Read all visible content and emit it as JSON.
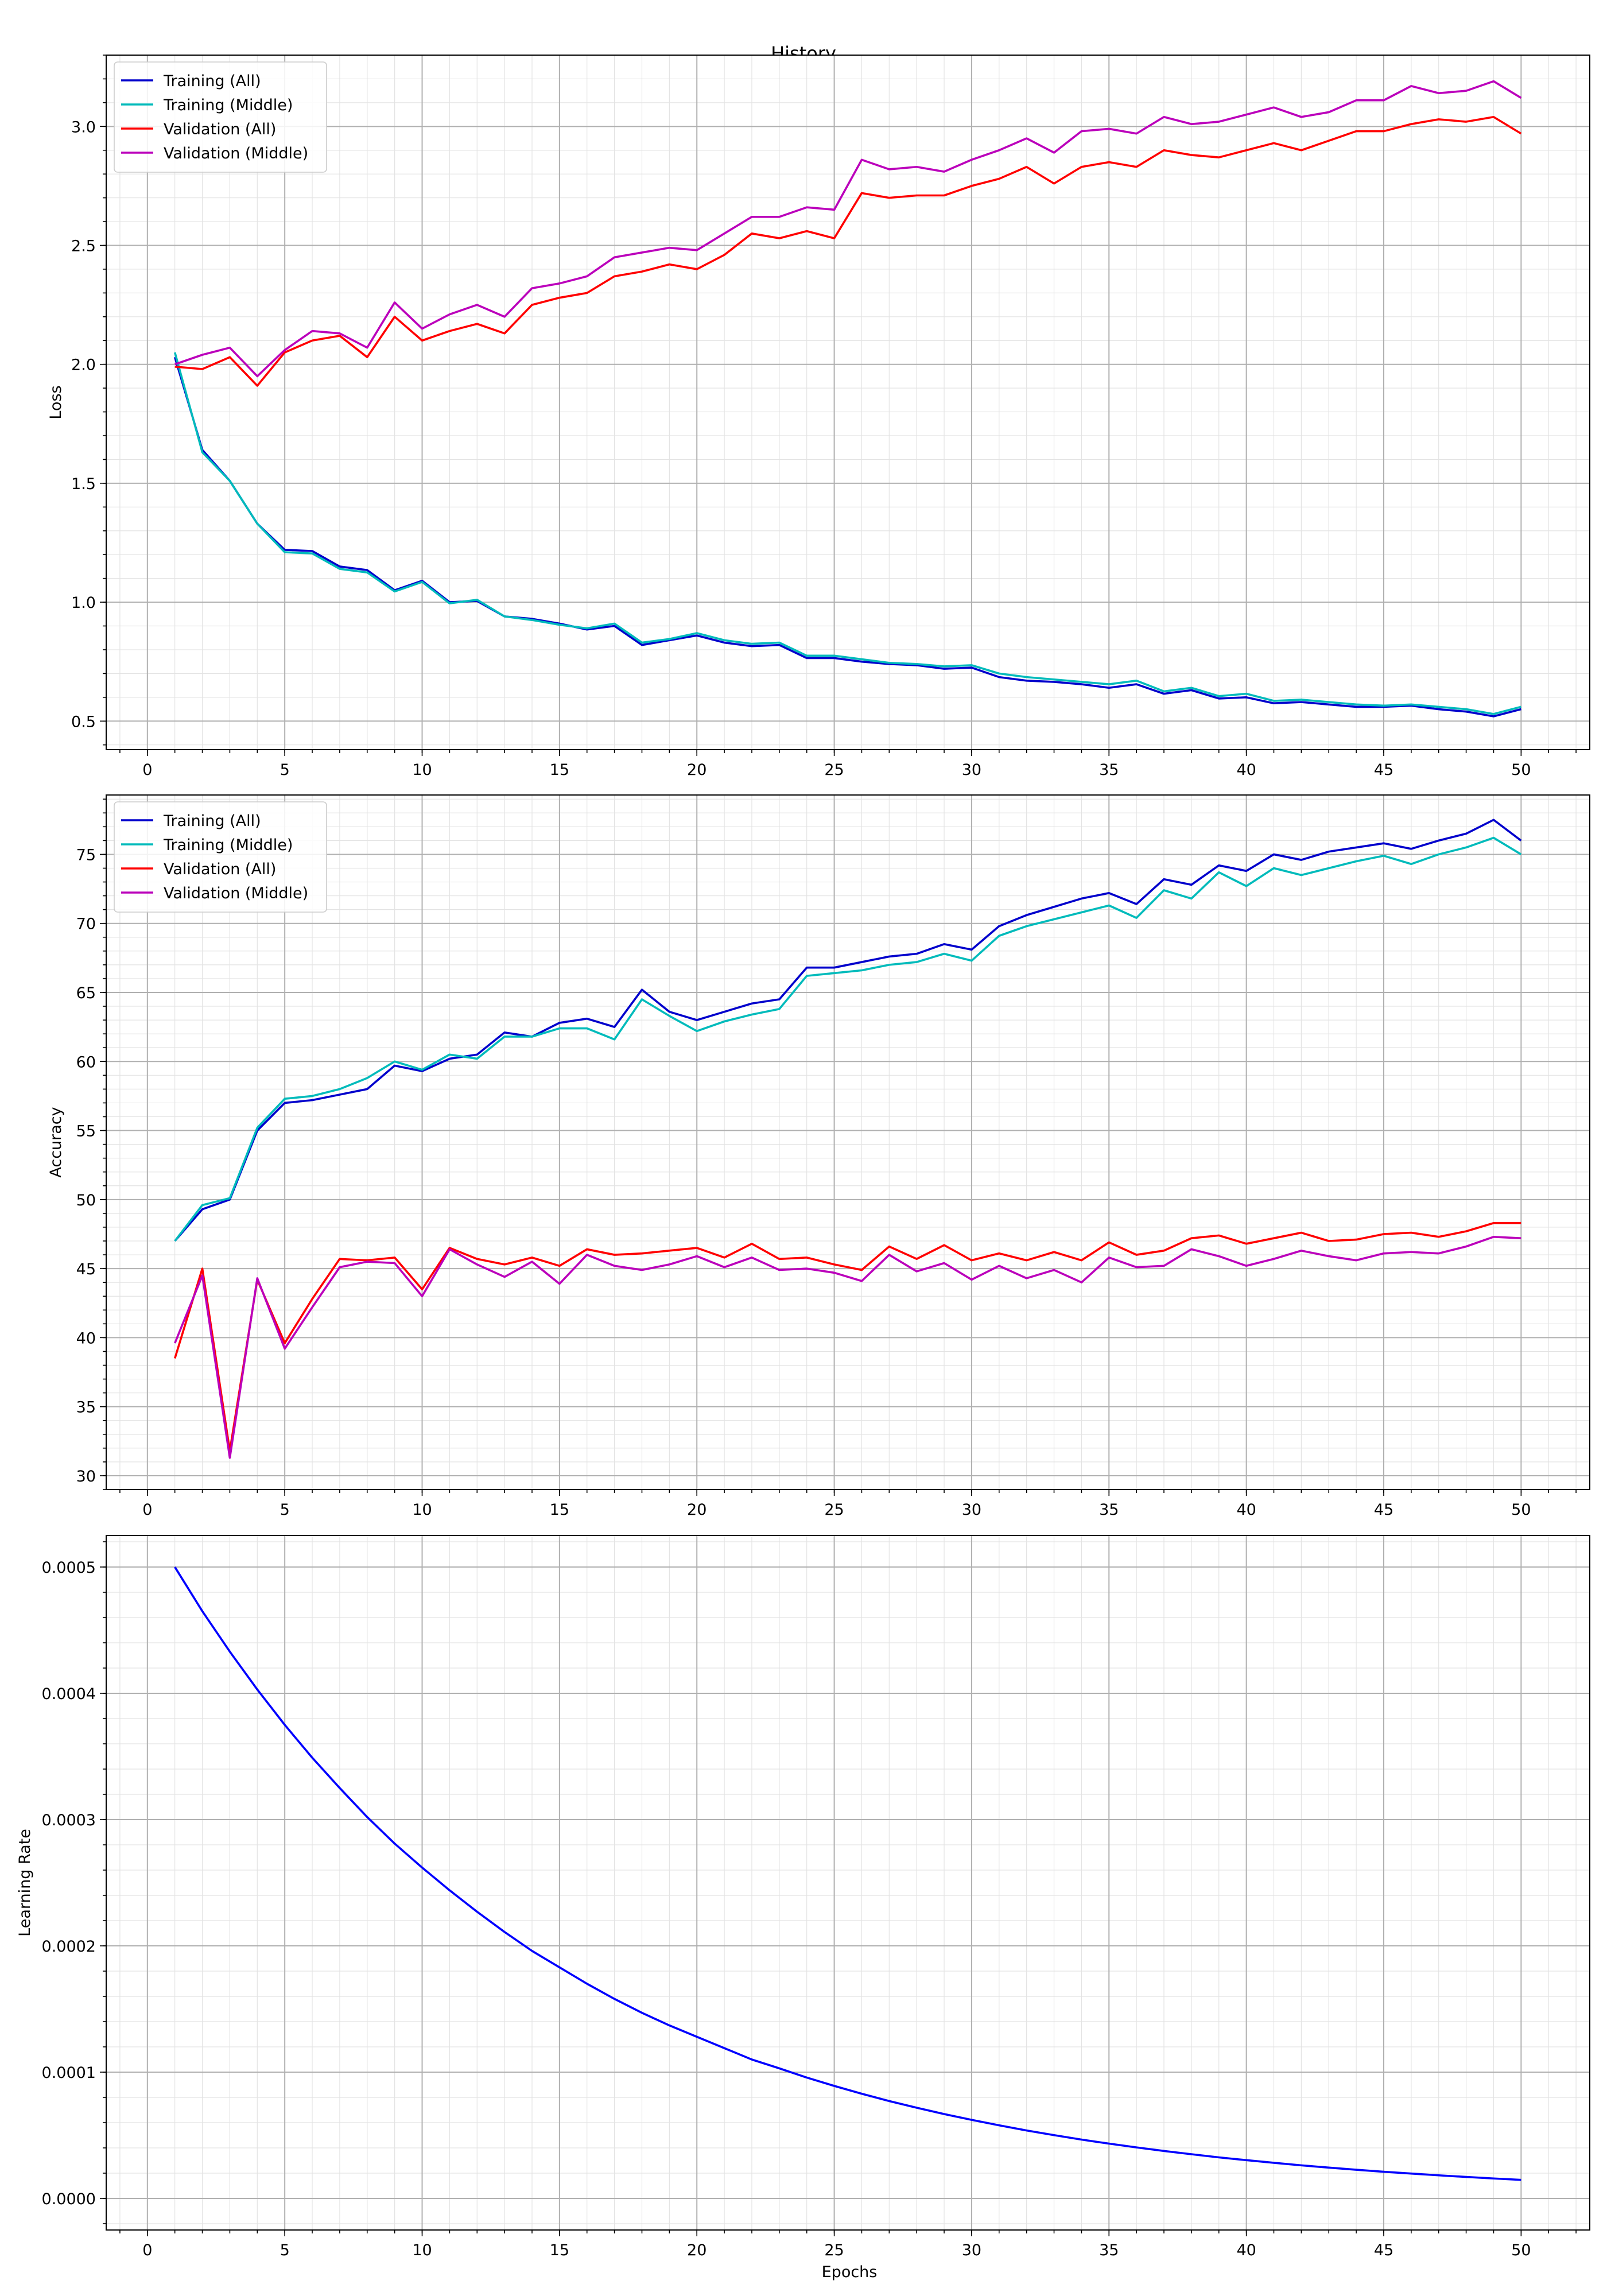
{
  "figure": {
    "title": "History"
  },
  "chart_data": [
    {
      "type": "line",
      "title": "",
      "xlabel": "",
      "ylabel": "Loss",
      "xlim": [
        -1.5,
        52.5
      ],
      "ylim": [
        0.38,
        3.3
      ],
      "xticks": [
        0,
        5,
        10,
        15,
        20,
        25,
        30,
        35,
        40,
        45,
        50
      ],
      "yticks": [
        0.5,
        1.0,
        1.5,
        2.0,
        2.5,
        3.0
      ],
      "ytick_decimals": 1,
      "grid": true,
      "legend": "upper-left",
      "x": [
        1,
        2,
        3,
        4,
        5,
        6,
        7,
        8,
        9,
        10,
        11,
        12,
        13,
        14,
        15,
        16,
        17,
        18,
        19,
        20,
        21,
        22,
        23,
        24,
        25,
        26,
        27,
        28,
        29,
        30,
        31,
        32,
        33,
        34,
        35,
        36,
        37,
        38,
        39,
        40,
        41,
        42,
        43,
        44,
        45,
        46,
        47,
        48,
        49,
        50
      ],
      "series": [
        {
          "name": "Training (All)",
          "color": "#0000cc",
          "values": [
            2.03,
            1.64,
            1.51,
            1.33,
            1.22,
            1.215,
            1.15,
            1.135,
            1.05,
            1.09,
            1.0,
            1.005,
            0.94,
            0.93,
            0.91,
            0.885,
            0.9,
            0.82,
            0.84,
            0.86,
            0.83,
            0.815,
            0.82,
            0.765,
            0.765,
            0.75,
            0.74,
            0.735,
            0.72,
            0.725,
            0.685,
            0.67,
            0.665,
            0.655,
            0.64,
            0.655,
            0.615,
            0.63,
            0.595,
            0.6,
            0.575,
            0.58,
            0.57,
            0.56,
            0.56,
            0.565,
            0.55,
            0.54,
            0.52,
            0.55
          ]
        },
        {
          "name": "Training (Middle)",
          "color": "#00bbbb",
          "values": [
            2.05,
            1.63,
            1.51,
            1.33,
            1.21,
            1.205,
            1.14,
            1.125,
            1.045,
            1.085,
            0.995,
            1.01,
            0.94,
            0.925,
            0.905,
            0.89,
            0.91,
            0.83,
            0.845,
            0.87,
            0.84,
            0.825,
            0.83,
            0.775,
            0.775,
            0.76,
            0.745,
            0.74,
            0.73,
            0.735,
            0.7,
            0.685,
            0.675,
            0.665,
            0.655,
            0.67,
            0.625,
            0.64,
            0.605,
            0.615,
            0.585,
            0.59,
            0.58,
            0.57,
            0.565,
            0.57,
            0.56,
            0.55,
            0.53,
            0.56
          ]
        },
        {
          "name": "Validation (All)",
          "color": "#ff0000",
          "values": [
            1.99,
            1.98,
            2.03,
            1.91,
            2.05,
            2.1,
            2.12,
            2.03,
            2.2,
            2.1,
            2.14,
            2.17,
            2.13,
            2.25,
            2.28,
            2.3,
            2.37,
            2.39,
            2.42,
            2.4,
            2.46,
            2.55,
            2.53,
            2.56,
            2.53,
            2.72,
            2.7,
            2.71,
            2.71,
            2.75,
            2.78,
            2.83,
            2.76,
            2.83,
            2.85,
            2.83,
            2.9,
            2.88,
            2.87,
            2.9,
            2.93,
            2.9,
            2.94,
            2.98,
            2.98,
            3.01,
            3.03,
            3.02,
            3.04,
            2.97
          ]
        },
        {
          "name": "Validation (Middle)",
          "color": "#bb00bb",
          "values": [
            2.0,
            2.04,
            2.07,
            1.95,
            2.06,
            2.14,
            2.13,
            2.07,
            2.26,
            2.15,
            2.21,
            2.25,
            2.2,
            2.32,
            2.34,
            2.37,
            2.45,
            2.47,
            2.49,
            2.48,
            2.55,
            2.62,
            2.62,
            2.66,
            2.65,
            2.86,
            2.82,
            2.83,
            2.81,
            2.86,
            2.9,
            2.95,
            2.89,
            2.98,
            2.99,
            2.97,
            3.04,
            3.01,
            3.02,
            3.05,
            3.08,
            3.04,
            3.06,
            3.11,
            3.11,
            3.17,
            3.14,
            3.15,
            3.19,
            3.12
          ]
        }
      ]
    },
    {
      "type": "line",
      "title": "",
      "xlabel": "",
      "ylabel": "Accuracy",
      "xlim": [
        -1.5,
        52.5
      ],
      "ylim": [
        29.0,
        79.3
      ],
      "xticks": [
        0,
        5,
        10,
        15,
        20,
        25,
        30,
        35,
        40,
        45,
        50
      ],
      "yticks": [
        30,
        35,
        40,
        45,
        50,
        55,
        60,
        65,
        70,
        75
      ],
      "ytick_decimals": 0,
      "grid": true,
      "legend": "upper-left",
      "x": [
        1,
        2,
        3,
        4,
        5,
        6,
        7,
        8,
        9,
        10,
        11,
        12,
        13,
        14,
        15,
        16,
        17,
        18,
        19,
        20,
        21,
        22,
        23,
        24,
        25,
        26,
        27,
        28,
        29,
        30,
        31,
        32,
        33,
        34,
        35,
        36,
        37,
        38,
        39,
        40,
        41,
        42,
        43,
        44,
        45,
        46,
        47,
        48,
        49,
        50
      ],
      "series": [
        {
          "name": "Training (All)",
          "color": "#0000cc",
          "values": [
            47.0,
            49.3,
            50.0,
            55.0,
            57.0,
            57.2,
            57.6,
            58.0,
            59.7,
            59.3,
            60.2,
            60.5,
            62.1,
            61.8,
            62.8,
            63.1,
            62.5,
            65.2,
            63.6,
            63.0,
            63.6,
            64.2,
            64.5,
            66.8,
            66.8,
            67.2,
            67.6,
            67.8,
            68.5,
            68.1,
            69.8,
            70.6,
            71.2,
            71.8,
            72.2,
            71.4,
            73.2,
            72.8,
            74.2,
            73.8,
            75.0,
            74.6,
            75.2,
            75.5,
            75.8,
            75.4,
            76.0,
            76.5,
            77.5,
            76.0
          ]
        },
        {
          "name": "Training (Middle)",
          "color": "#00bbbb",
          "values": [
            47.0,
            49.6,
            50.1,
            55.2,
            57.3,
            57.5,
            58.0,
            58.8,
            60.0,
            59.4,
            60.5,
            60.2,
            61.8,
            61.8,
            62.4,
            62.4,
            61.6,
            64.5,
            63.3,
            62.2,
            62.9,
            63.4,
            63.8,
            66.2,
            66.4,
            66.6,
            67.0,
            67.2,
            67.8,
            67.3,
            69.1,
            69.8,
            70.3,
            70.8,
            71.3,
            70.4,
            72.4,
            71.8,
            73.7,
            72.7,
            74.0,
            73.5,
            74.0,
            74.5,
            74.9,
            74.3,
            75.0,
            75.5,
            76.2,
            75.0
          ]
        },
        {
          "name": "Validation (All)",
          "color": "#ff0000",
          "values": [
            38.5,
            45.0,
            31.8,
            44.2,
            39.6,
            42.8,
            45.7,
            45.6,
            45.8,
            43.5,
            46.5,
            45.7,
            45.3,
            45.8,
            45.2,
            46.4,
            46.0,
            46.1,
            46.3,
            46.5,
            45.8,
            46.8,
            45.7,
            45.8,
            45.3,
            44.9,
            46.6,
            45.7,
            46.7,
            45.6,
            46.1,
            45.6,
            46.2,
            45.6,
            46.9,
            46.0,
            46.3,
            47.2,
            47.4,
            46.8,
            47.2,
            47.6,
            47.0,
            47.1,
            47.5,
            47.6,
            47.3,
            47.7,
            48.3,
            48.3
          ]
        },
        {
          "name": "Validation (Middle)",
          "color": "#bb00bb",
          "values": [
            39.6,
            44.5,
            31.3,
            44.3,
            39.2,
            42.2,
            45.1,
            45.5,
            45.4,
            43.0,
            46.4,
            45.3,
            44.4,
            45.5,
            43.9,
            46.0,
            45.2,
            44.9,
            45.3,
            45.9,
            45.1,
            45.8,
            44.9,
            45.0,
            44.7,
            44.1,
            46.0,
            44.8,
            45.4,
            44.2,
            45.2,
            44.3,
            44.9,
            44.0,
            45.8,
            45.1,
            45.2,
            46.4,
            45.9,
            45.2,
            45.7,
            46.3,
            45.9,
            45.6,
            46.1,
            46.2,
            46.1,
            46.6,
            47.3,
            47.2
          ]
        }
      ]
    },
    {
      "type": "line",
      "title": "",
      "xlabel": "Epochs",
      "ylabel": "Learning Rate",
      "xlim": [
        -1.5,
        52.5
      ],
      "ylim": [
        -2.5e-05,
        0.000525
      ],
      "xticks": [
        0,
        5,
        10,
        15,
        20,
        25,
        30,
        35,
        40,
        45,
        50
      ],
      "yticks": [
        0.0,
        0.0001,
        0.0002,
        0.0003,
        0.0004,
        0.0005
      ],
      "ytick_decimals": 4,
      "grid": true,
      "legend": "none",
      "x": [
        1,
        2,
        3,
        4,
        5,
        6,
        7,
        8,
        9,
        10,
        11,
        12,
        13,
        14,
        15,
        16,
        17,
        18,
        19,
        20,
        21,
        22,
        23,
        24,
        25,
        26,
        27,
        28,
        29,
        30,
        31,
        32,
        33,
        34,
        35,
        36,
        37,
        38,
        39,
        40,
        41,
        42,
        43,
        44,
        45,
        46,
        47,
        48,
        49,
        50
      ],
      "series": [
        {
          "color": "#0000ff",
          "values": [
            0.0005,
            0.000465,
            0.000433,
            0.000403,
            0.000375,
            0.000349,
            0.000325,
            0.000302,
            0.000281,
            0.000262,
            0.000244,
            0.000227,
            0.000211,
            0.000196,
            0.000183,
            0.00017,
            0.000158,
            0.000147,
            0.000137,
            0.000128,
            0.000119,
            0.00011,
            0.000103,
            9.57e-05,
            8.91e-05,
            8.29e-05,
            7.71e-05,
            7.18e-05,
            6.68e-05,
            6.22e-05,
            5.79e-05,
            5.38e-05,
            5.01e-05,
            4.66e-05,
            4.34e-05,
            4.04e-05,
            3.76e-05,
            3.5e-05,
            3.25e-05,
            3.03e-05,
            2.82e-05,
            2.62e-05,
            2.44e-05,
            2.27e-05,
            2.11e-05,
            1.97e-05,
            1.83e-05,
            1.7e-05,
            1.58e-05,
            1.47e-05
          ]
        }
      ]
    }
  ]
}
